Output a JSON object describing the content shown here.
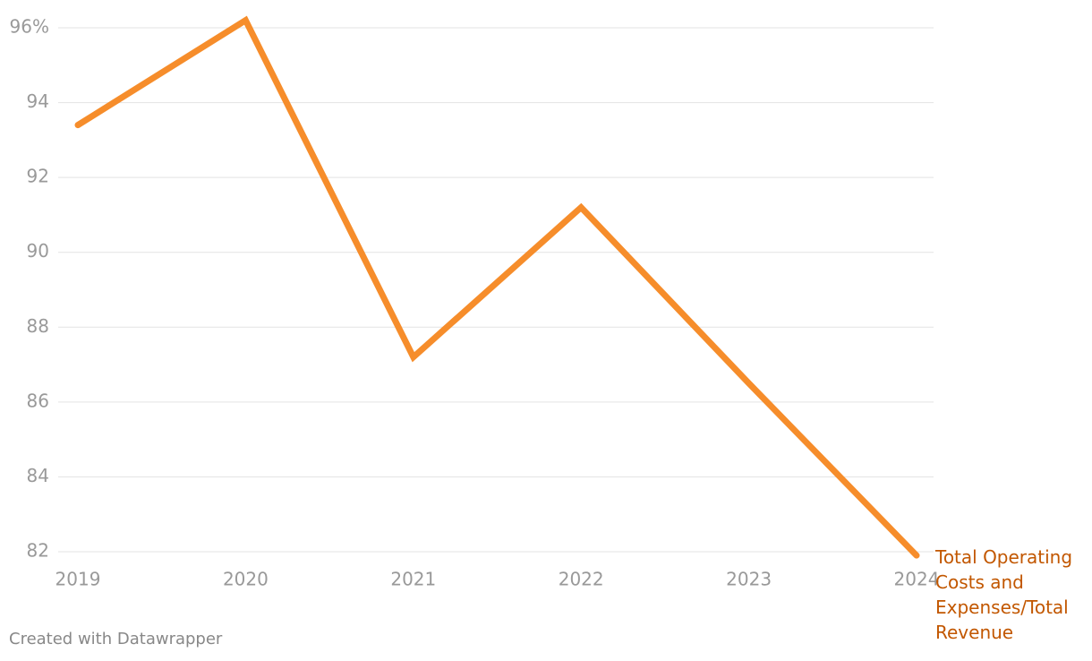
{
  "chart_data": {
    "type": "line",
    "categories": [
      "2019",
      "2020",
      "2021",
      "2022",
      "2023",
      "2024"
    ],
    "series": [
      {
        "name": "Total Operating Costs and Expenses/Total Revenue",
        "color": "#f68d2b",
        "label_color": "#c25700",
        "values": [
          93.4,
          96.2,
          87.2,
          91.2,
          86.5,
          81.9
        ]
      }
    ],
    "ylim": [
      82,
      96
    ],
    "yticks": [
      {
        "value": 96,
        "label": "96%"
      },
      94,
      92,
      90,
      88,
      86,
      84,
      82
    ],
    "grid": true,
    "source": "Created with Datawrapper"
  }
}
